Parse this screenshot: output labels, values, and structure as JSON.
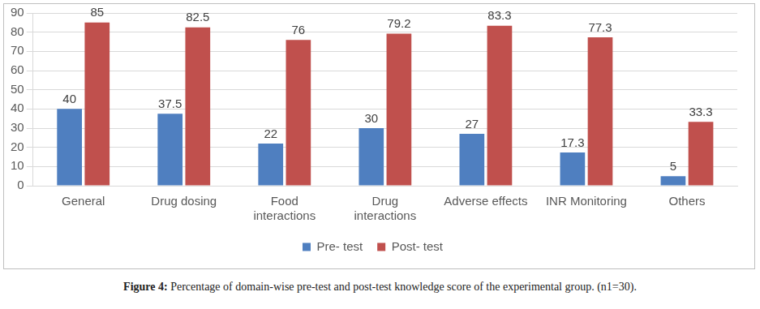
{
  "chart_data": {
    "type": "bar",
    "caption": "Figure 4: Percentage of domain-wise pre-test and post-test knowledge score of the experimental group. (n1=30).",
    "categories": [
      "General",
      "Drug dosing",
      "Food interactions",
      "Drug interactions",
      "Adverse effects",
      "INR Monitoring",
      "Others"
    ],
    "series": [
      {
        "name": "Pre- test",
        "color": "#4f7fc0",
        "values": [
          40,
          37.5,
          22,
          30,
          27,
          17.3,
          5
        ]
      },
      {
        "name": "Post- test",
        "color": "#c0504d",
        "values": [
          85,
          82.5,
          76,
          79.2,
          83.3,
          77.3,
          33.3
        ]
      }
    ],
    "ylim": [
      0,
      90
    ],
    "yticks": [
      0,
      10,
      20,
      30,
      40,
      50,
      60,
      70,
      80,
      90
    ],
    "grid": true,
    "legend": "bottom",
    "data_labels": true
  }
}
